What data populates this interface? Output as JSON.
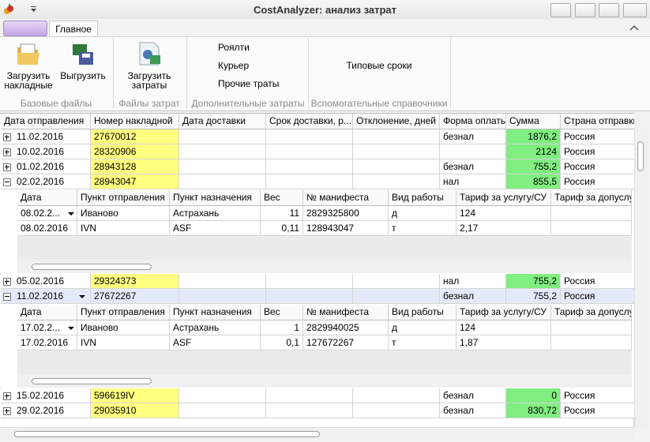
{
  "window": {
    "title": "CostAnalyzer: анализ затрат"
  },
  "ribbon": {
    "tab": "Главное",
    "groups": [
      {
        "label": "Базовые файлы",
        "buttons": [
          [
            "Загрузить",
            "накладные"
          ],
          [
            "Выгрузить"
          ]
        ]
      },
      {
        "label": "Файлы затрат",
        "buttons": [
          [
            "Загрузить",
            "затраты"
          ]
        ]
      },
      {
        "label": "Дополнительные затраты",
        "buttons": [
          [
            "Роялти"
          ],
          [
            "Курьер"
          ],
          [
            "Прочие траты"
          ]
        ]
      },
      {
        "label": "Вспомогательные справочники",
        "buttons": [
          [
            "Типовые сроки"
          ]
        ]
      }
    ]
  },
  "grid": {
    "columns": [
      "Дата отправления",
      "Номер накладной",
      "Дата доставки",
      "Срок доставки, р...",
      "Отклонение, дней",
      "Форма оплаты",
      "Сумма",
      "Страна отправки"
    ],
    "rows": [
      {
        "cells": [
          "11.02.2016",
          "27670012",
          "",
          "",
          "",
          "безнал",
          "1876,2",
          "Россия"
        ]
      },
      {
        "cells": [
          "10.02.2016",
          "28320906",
          "",
          "",
          "",
          "",
          "2124",
          "Россия"
        ]
      },
      {
        "cells": [
          "01.02.2016",
          "28943128",
          "",
          "",
          "",
          "безнал",
          "755,2",
          "Россия"
        ]
      },
      {
        "cells": [
          "02.02.2016",
          "28943047",
          "",
          "",
          "",
          "нал",
          "855,5",
          "Россия"
        ],
        "detail": {
          "columns": [
            "Дата",
            "Пункт отправления",
            "Пункт назначения",
            "Вес",
            "№ манифеста",
            "Вид работы",
            "Тариф за услугу/СУ",
            "Тариф за допуслуг"
          ],
          "rows": [
            [
              "08.02.2...",
              "Иваново",
              "Астрахань",
              "11",
              "2829325800",
              "д",
              "124",
              ""
            ],
            [
              "08.02.2016",
              "IVN",
              "ASF",
              "0,11",
              "128943047",
              "т",
              "2,17",
              ""
            ]
          ]
        }
      },
      {
        "cells": [
          "05.02.2016",
          "29324373",
          "",
          "",
          "",
          "нал",
          "755,2",
          "Россия"
        ]
      },
      {
        "cells": [
          "11.02.2016",
          "27672267",
          "",
          "",
          "",
          "безнал",
          "755,2",
          "Россия"
        ],
        "selected": true,
        "detail": {
          "columns": [
            "Дата",
            "Пункт отправления",
            "Пункт назначения",
            "Вес",
            "№ манифеста",
            "Вид работы",
            "Тариф за услугу/СУ",
            "Тариф за допуслуг"
          ],
          "rows": [
            [
              "17.02.2...",
              "Иваново",
              "Астрахань",
              "1",
              "2829940025",
              "д",
              "124",
              ""
            ],
            [
              "17.02.2016",
              "IVN",
              "ASF",
              "0,1",
              "127672267",
              "т",
              "1,87",
              ""
            ]
          ]
        }
      },
      {
        "cells": [
          "15.02.2016",
          "596619IV",
          "",
          "",
          "",
          "безнал",
          "0",
          "Россия"
        ]
      },
      {
        "cells": [
          "29.02.2016",
          "29035910",
          "",
          "",
          "",
          "безнал",
          "830,72",
          "Россия"
        ]
      }
    ]
  }
}
